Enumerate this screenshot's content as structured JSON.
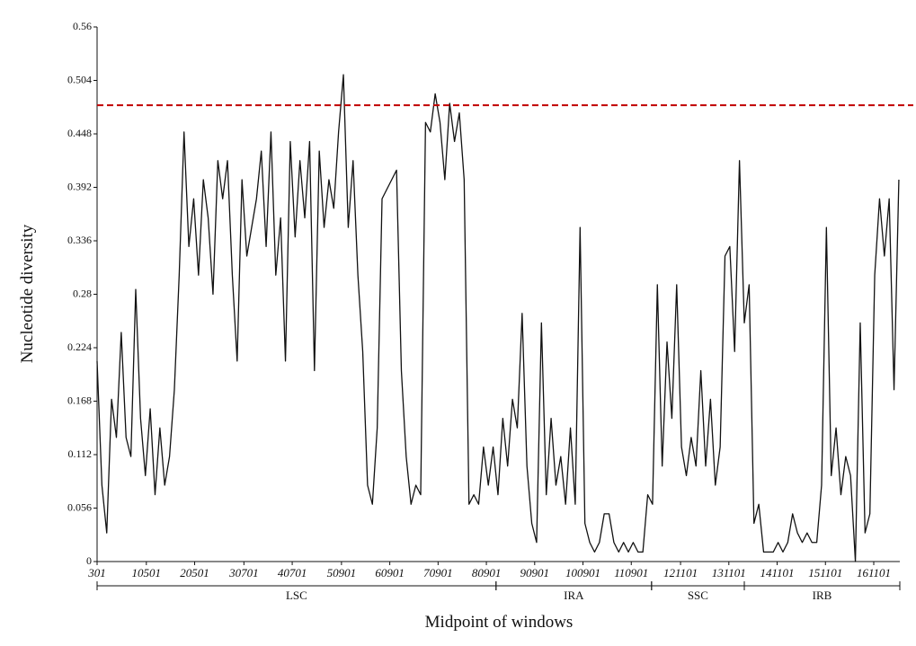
{
  "chart_data": {
    "type": "line",
    "xlabel": "Midpoint of windows",
    "ylabel": "Nucleotide diversity",
    "color": "#111111",
    "x": [
      301,
      1301,
      2301,
      3301,
      4301,
      5301,
      6301,
      7301,
      8301,
      9301,
      10301,
      11301,
      12301,
      13301,
      14301,
      15301,
      16301,
      17301,
      18301,
      19301,
      20301,
      21301,
      22301,
      23301,
      24301,
      25301,
      26301,
      27301,
      28301,
      29301,
      30301,
      31301,
      32301,
      33301,
      34301,
      35301,
      36301,
      37301,
      38301,
      39301,
      40301,
      41301,
      42301,
      43301,
      44301,
      45301,
      46301,
      47301,
      48301,
      49301,
      50301,
      51301,
      52301,
      53301,
      54301,
      55301,
      56301,
      57301,
      58301,
      59301,
      60301,
      61301,
      62301,
      63301,
      64301,
      65301,
      66301,
      67301,
      68301,
      69301,
      70301,
      71301,
      72301,
      73301,
      74301,
      75301,
      76301,
      77301,
      78301,
      79301,
      80301,
      81301,
      82301,
      83301,
      84301,
      85301,
      86301,
      87301,
      88301,
      89301,
      90301,
      91301,
      92301,
      93301,
      94301,
      95301,
      96301,
      97301,
      98301,
      99301,
      100301,
      101301,
      102301,
      103301,
      104301,
      105301,
      106301,
      107301,
      108301,
      109301,
      110301,
      111301,
      112301,
      113301,
      114301,
      115301,
      116301,
      117301,
      118301,
      119301,
      120301,
      121301,
      122301,
      123301,
      124301,
      125301,
      126301,
      127301,
      128301,
      129301,
      130301,
      131301,
      132301,
      133301,
      134301,
      135301,
      136301,
      137301,
      138301,
      139301,
      140301,
      141301,
      142301,
      143301,
      144301,
      145301,
      146301,
      147301,
      148301,
      149301,
      150301,
      151301,
      152301,
      153301,
      154301,
      155301,
      156301,
      157301,
      158301,
      159301,
      160301,
      161301,
      162301,
      163301,
      164301,
      165301,
      166301
    ],
    "values": [
      0.21,
      0.08,
      0.03,
      0.17,
      0.13,
      0.24,
      0.13,
      0.11,
      0.285,
      0.15,
      0.09,
      0.16,
      0.07,
      0.14,
      0.08,
      0.11,
      0.18,
      0.3,
      0.45,
      0.33,
      0.38,
      0.3,
      0.4,
      0.36,
      0.28,
      0.42,
      0.38,
      0.42,
      0.3,
      0.21,
      0.4,
      0.32,
      0.35,
      0.38,
      0.43,
      0.33,
      0.45,
      0.3,
      0.36,
      0.21,
      0.44,
      0.34,
      0.42,
      0.36,
      0.44,
      0.2,
      0.43,
      0.35,
      0.4,
      0.37,
      0.45,
      0.51,
      0.35,
      0.42,
      0.3,
      0.22,
      0.08,
      0.06,
      0.14,
      0.38,
      0.39,
      0.4,
      0.41,
      0.2,
      0.11,
      0.06,
      0.08,
      0.07,
      0.46,
      0.45,
      0.49,
      0.46,
      0.4,
      0.48,
      0.44,
      0.47,
      0.4,
      0.06,
      0.07,
      0.06,
      0.12,
      0.08,
      0.12,
      0.07,
      0.15,
      0.1,
      0.17,
      0.14,
      0.26,
      0.1,
      0.04,
      0.02,
      0.25,
      0.07,
      0.15,
      0.08,
      0.11,
      0.06,
      0.14,
      0.06,
      0.35,
      0.04,
      0.02,
      0.01,
      0.02,
      0.05,
      0.05,
      0.02,
      0.01,
      0.02,
      0.01,
      0.02,
      0.01,
      0.01,
      0.07,
      0.06,
      0.29,
      0.1,
      0.23,
      0.15,
      0.29,
      0.12,
      0.09,
      0.13,
      0.1,
      0.2,
      0.1,
      0.17,
      0.08,
      0.12,
      0.32,
      0.33,
      0.22,
      0.42,
      0.25,
      0.29,
      0.04,
      0.06,
      0.01,
      0.01,
      0.01,
      0.02,
      0.01,
      0.02,
      0.05,
      0.03,
      0.02,
      0.03,
      0.02,
      0.02,
      0.08,
      0.35,
      0.09,
      0.14,
      0.07,
      0.11,
      0.09,
      0.0,
      0.25,
      0.03,
      0.05,
      0.3,
      0.38,
      0.32,
      0.38,
      0.18,
      0.4
    ],
    "xlim": [
      301,
      166500
    ],
    "xticks": [
      301,
      10501,
      20501,
      30701,
      40701,
      50901,
      60901,
      70901,
      80901,
      90901,
      100901,
      110901,
      121101,
      131101,
      141101,
      151101,
      161101
    ],
    "ylim": [
      0,
      0.56
    ],
    "yticks": [
      0,
      0.056,
      0.112,
      0.168,
      0.224,
      0.28,
      0.336,
      0.392,
      0.448,
      0.504,
      0.56
    ],
    "reference_line": {
      "value": 0.478,
      "color": "#c00000"
    },
    "regions": [
      {
        "name": "LSC",
        "start": 301,
        "end": 82900
      },
      {
        "name": "IRA",
        "start": 82900,
        "end": 115100
      },
      {
        "name": "SSC",
        "start": 115100,
        "end": 134300
      },
      {
        "name": "IRB",
        "start": 134300,
        "end": 166500
      }
    ]
  }
}
